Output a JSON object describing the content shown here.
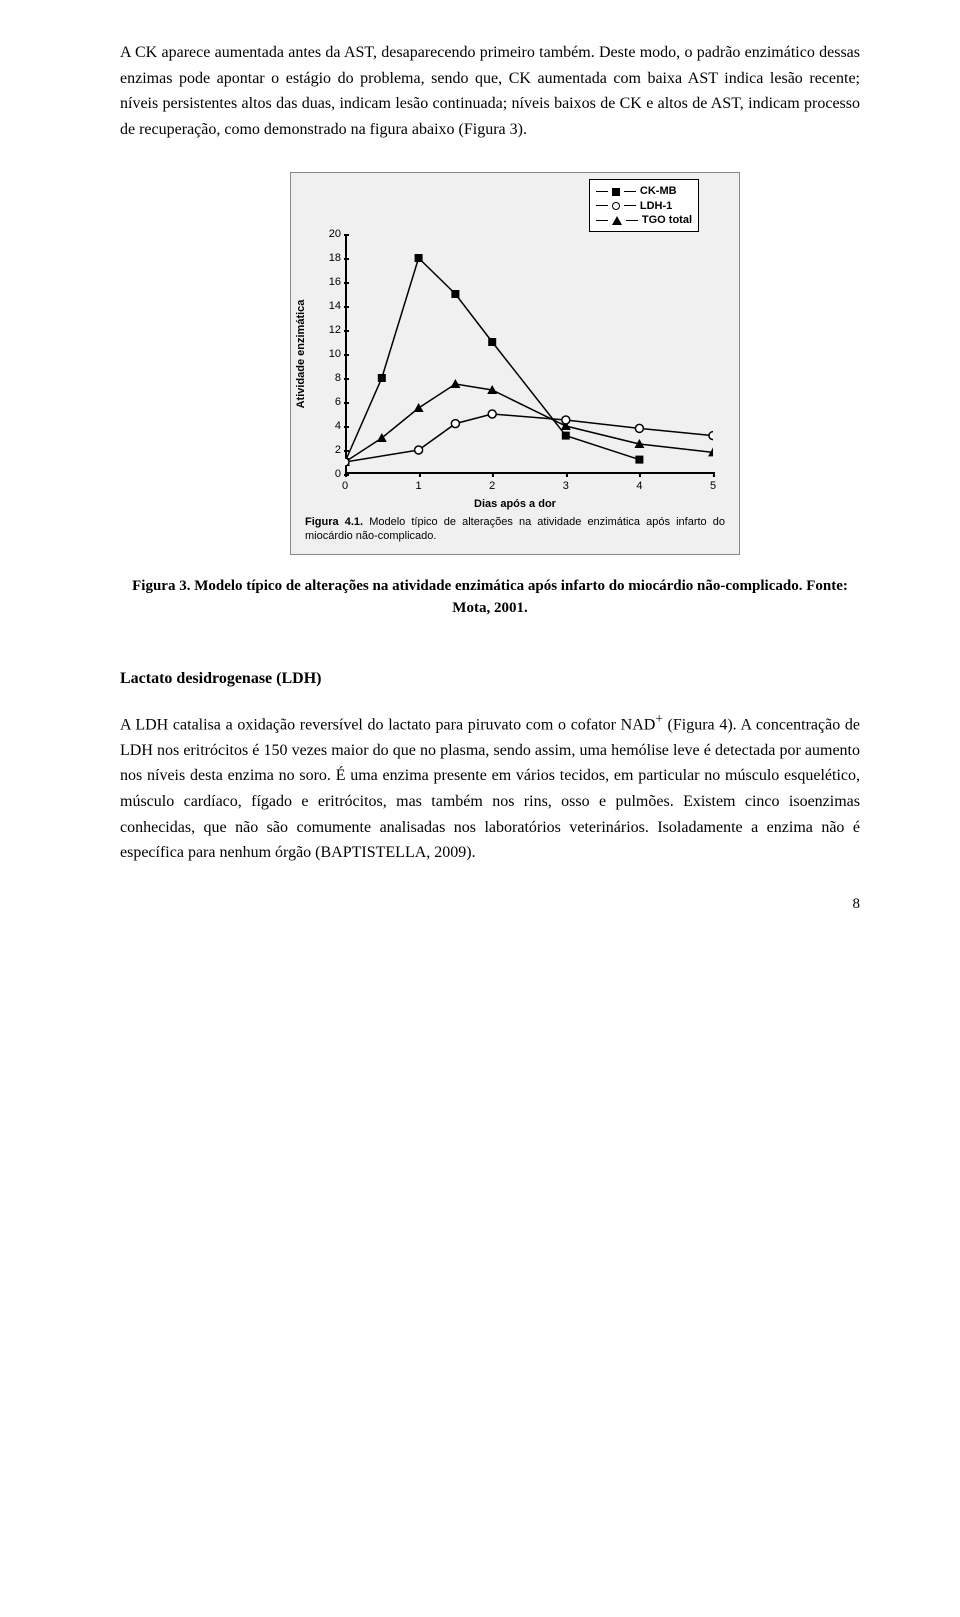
{
  "paragraphs": {
    "p1": "A CK aparece aumentada antes da AST, desaparecendo primeiro também. Deste modo, o padrão enzimático dessas enzimas pode apontar o estágio do problema, sendo que, CK aumentada com baixa AST indica lesão recente; níveis persistentes altos das duas, indicam lesão continuada; níveis baixos de CK e altos de AST, indicam processo de recuperação, como demonstrado na figura abaixo (Figura 3).",
    "caption": "Figura 3. Modelo típico de alterações na atividade enzimática após infarto do miocárdio não-complicado. Fonte: Mota, 2001.",
    "heading2": "Lactato desidrogenase (LDH)",
    "p2_a": "A LDH catalisa a oxidação reversível do lactato para piruvato com o cofator NAD",
    "p2_sup": "+",
    "p2_b": " (Figura 4). A concentração de LDH nos eritrócitos é 150 vezes maior do que no plasma, sendo assim, uma hemólise leve é detectada por aumento nos níveis desta enzima no soro. É uma enzima presente em vários tecidos, em particular no músculo esquelético, músculo cardíaco, fígado e eritrócitos, mas também nos rins, osso e pulmões. Existem cinco isoenzimas conhecidas, que não são comumente analisadas nos laboratórios veterinários. Isoladamente a enzima não é específica para nenhum órgão (BAPTISTELLA, 2009)."
  },
  "page_number": "8",
  "chart": {
    "type": "line",
    "background_color": "#f0f0f0",
    "grid_color": "#888888",
    "line_color": "#000000",
    "text_color": "#000000",
    "y_label": "Atividade enzimática",
    "x_label": "Dias após a dor",
    "legend_items": [
      "CK-MB",
      "LDH-1",
      "TGO total"
    ],
    "legend_markers": [
      "square",
      "circle",
      "triangle"
    ],
    "y_ticks": [
      0,
      2,
      4,
      6,
      8,
      10,
      12,
      14,
      16,
      18,
      20
    ],
    "x_ticks": [
      0,
      1,
      2,
      3,
      4,
      5
    ],
    "ylim": [
      0,
      20
    ],
    "xlim": [
      0,
      5
    ],
    "series": {
      "CK-MB": {
        "marker": "square",
        "x": [
          0,
          0.5,
          1,
          1.5,
          2,
          3,
          4
        ],
        "y": [
          1,
          8,
          18,
          15,
          11,
          3.2,
          1.2
        ]
      },
      "LDH-1": {
        "marker": "circle",
        "x": [
          0,
          1,
          1.5,
          2,
          3,
          4,
          5
        ],
        "y": [
          1,
          2,
          4.2,
          5,
          4.5,
          3.8,
          3.2
        ]
      },
      "TGO": {
        "marker": "triangle",
        "x": [
          0,
          0.5,
          1,
          1.5,
          2,
          3,
          4,
          5
        ],
        "y": [
          1,
          3,
          5.5,
          7.5,
          7,
          4,
          2.5,
          1.8
        ]
      }
    },
    "inner_caption_prefix": "Figura 4.1.",
    "inner_caption": "Modelo típico de alterações na atividade enzimática após infarto do miocárdio não-complicado."
  }
}
